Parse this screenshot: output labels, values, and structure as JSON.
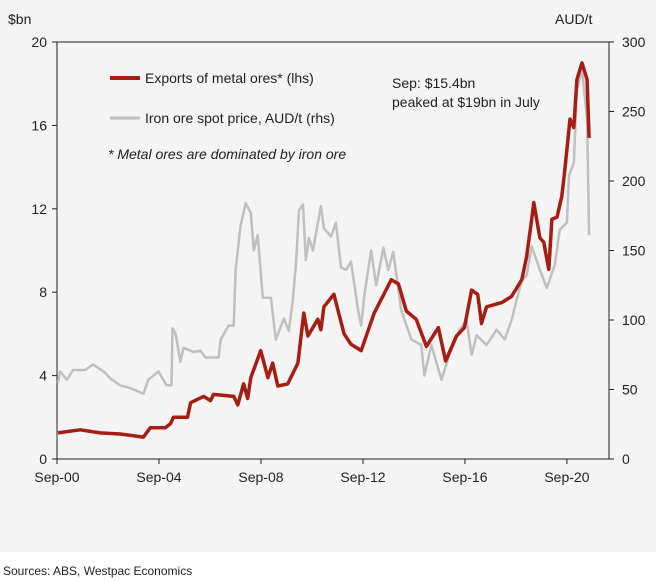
{
  "chart_data": {
    "type": "line",
    "left_axis": {
      "label": "$bn",
      "range": [
        0,
        20
      ],
      "ticks": [
        0,
        4,
        8,
        12,
        16,
        20
      ]
    },
    "right_axis": {
      "label": "AUD/t",
      "range": [
        0,
        300
      ],
      "ticks": [
        0,
        50,
        100,
        150,
        200,
        250,
        300
      ]
    },
    "x_axis": {
      "range": [
        2000.75,
        2022.4
      ],
      "ticks": [
        {
          "label": "Sep-00",
          "value": 2000.75
        },
        {
          "label": "Sep-04",
          "value": 2004.75
        },
        {
          "label": "Sep-08",
          "value": 2008.75
        },
        {
          "label": "Sep-12",
          "value": 2012.75
        },
        {
          "label": "Sep-16",
          "value": 2016.75
        },
        {
          "label": "Sep-20",
          "value": 2020.75
        }
      ]
    },
    "series": [
      {
        "name": "Exports of metal ores* (lhs)",
        "axis": "left",
        "color": "#a51e14",
        "points": [
          [
            2000.79,
            1.25
          ],
          [
            2001.66,
            1.4
          ],
          [
            2002.44,
            1.25
          ],
          [
            2003.23,
            1.2
          ],
          [
            2004.14,
            1.05
          ],
          [
            2004.41,
            1.5
          ],
          [
            2005.0,
            1.5
          ],
          [
            2005.2,
            1.7
          ],
          [
            2005.32,
            2.0
          ],
          [
            2005.87,
            2.0
          ],
          [
            2005.99,
            2.7
          ],
          [
            2006.5,
            3.0
          ],
          [
            2006.77,
            2.8
          ],
          [
            2006.89,
            3.1
          ],
          [
            2007.68,
            3.0
          ],
          [
            2007.84,
            2.6
          ],
          [
            2008.07,
            3.6
          ],
          [
            2008.23,
            2.9
          ],
          [
            2008.35,
            3.9
          ],
          [
            2008.74,
            5.2
          ],
          [
            2009.02,
            3.9
          ],
          [
            2009.21,
            4.6
          ],
          [
            2009.41,
            3.5
          ],
          [
            2009.8,
            3.6
          ],
          [
            2010.2,
            4.6
          ],
          [
            2010.43,
            7.0
          ],
          [
            2010.59,
            5.9
          ],
          [
            2010.98,
            6.7
          ],
          [
            2011.1,
            6.2
          ],
          [
            2011.22,
            7.3
          ],
          [
            2011.61,
            7.9
          ],
          [
            2012.01,
            6.0
          ],
          [
            2012.28,
            5.5
          ],
          [
            2012.68,
            5.2
          ],
          [
            2013.19,
            7.0
          ],
          [
            2013.86,
            8.6
          ],
          [
            2014.14,
            8.4
          ],
          [
            2014.45,
            7.1
          ],
          [
            2014.84,
            6.7
          ],
          [
            2015.24,
            5.4
          ],
          [
            2015.71,
            6.3
          ],
          [
            2015.99,
            4.7
          ],
          [
            2016.42,
            5.9
          ],
          [
            2016.73,
            6.3
          ],
          [
            2017.01,
            8.1
          ],
          [
            2017.25,
            7.9
          ],
          [
            2017.4,
            6.5
          ],
          [
            2017.6,
            7.3
          ],
          [
            2018.19,
            7.5
          ],
          [
            2018.58,
            7.8
          ],
          [
            2018.98,
            8.6
          ],
          [
            2019.17,
            9.7
          ],
          [
            2019.37,
            11.5
          ],
          [
            2019.45,
            12.3
          ],
          [
            2019.69,
            10.6
          ],
          [
            2019.84,
            10.4
          ],
          [
            2020.04,
            9.1
          ],
          [
            2020.16,
            11.5
          ],
          [
            2020.36,
            11.6
          ],
          [
            2020.55,
            12.6
          ],
          [
            2020.67,
            13.9
          ],
          [
            2020.87,
            16.3
          ],
          [
            2021.02,
            15.9
          ],
          [
            2021.14,
            18.2
          ],
          [
            2021.34,
            19.0
          ],
          [
            2021.54,
            18.2
          ],
          [
            2021.62,
            15.4
          ]
        ]
      },
      {
        "name": "Iron ore spot price, AUD/t (rhs)",
        "axis": "right",
        "color": "#c0c0c0",
        "points": [
          [
            2000.79,
            55
          ],
          [
            2000.87,
            63
          ],
          [
            2001.14,
            57
          ],
          [
            2001.38,
            64
          ],
          [
            2001.85,
            64
          ],
          [
            2002.17,
            68
          ],
          [
            2002.64,
            62
          ],
          [
            2002.84,
            58
          ],
          [
            2003.23,
            53
          ],
          [
            2003.62,
            51
          ],
          [
            2004.14,
            47
          ],
          [
            2004.33,
            57
          ],
          [
            2004.73,
            63
          ],
          [
            2005.04,
            53
          ],
          [
            2005.24,
            53
          ],
          [
            2005.28,
            94
          ],
          [
            2005.4,
            90
          ],
          [
            2005.59,
            70
          ],
          [
            2005.71,
            80
          ],
          [
            2006.1,
            77
          ],
          [
            2006.38,
            78
          ],
          [
            2006.58,
            73
          ],
          [
            2007.09,
            73
          ],
          [
            2007.17,
            86
          ],
          [
            2007.48,
            96
          ],
          [
            2007.68,
            96
          ],
          [
            2007.76,
            137
          ],
          [
            2007.95,
            168
          ],
          [
            2008.15,
            184
          ],
          [
            2008.35,
            177
          ],
          [
            2008.47,
            150
          ],
          [
            2008.62,
            161
          ],
          [
            2008.82,
            116
          ],
          [
            2009.14,
            116
          ],
          [
            2009.33,
            86
          ],
          [
            2009.65,
            101
          ],
          [
            2009.84,
            92
          ],
          [
            2010.0,
            114
          ],
          [
            2010.12,
            140
          ],
          [
            2010.24,
            179
          ],
          [
            2010.4,
            183
          ],
          [
            2010.51,
            143
          ],
          [
            2010.63,
            159
          ],
          [
            2010.79,
            150
          ],
          [
            2011.1,
            182
          ],
          [
            2011.22,
            166
          ],
          [
            2011.5,
            160
          ],
          [
            2011.69,
            170
          ],
          [
            2011.89,
            138
          ],
          [
            2012.09,
            136
          ],
          [
            2012.28,
            142
          ],
          [
            2012.56,
            107
          ],
          [
            2012.68,
            96
          ],
          [
            2012.8,
            117
          ],
          [
            2013.07,
            150
          ],
          [
            2013.27,
            125
          ],
          [
            2013.55,
            152
          ],
          [
            2013.74,
            136
          ],
          [
            2013.94,
            149
          ],
          [
            2014.25,
            107
          ],
          [
            2014.65,
            86
          ],
          [
            2015.04,
            82
          ],
          [
            2015.16,
            60
          ],
          [
            2015.43,
            82
          ],
          [
            2015.83,
            57
          ],
          [
            2016.14,
            75
          ],
          [
            2016.54,
            93
          ],
          [
            2016.81,
            100
          ],
          [
            2017.01,
            75
          ],
          [
            2017.21,
            89
          ],
          [
            2017.6,
            82
          ],
          [
            2017.99,
            93
          ],
          [
            2018.31,
            86
          ],
          [
            2018.58,
            100
          ],
          [
            2018.98,
            129
          ],
          [
            2019.17,
            132
          ],
          [
            2019.37,
            153
          ],
          [
            2019.69,
            136
          ],
          [
            2019.96,
            123
          ],
          [
            2020.28,
            140
          ],
          [
            2020.47,
            165
          ],
          [
            2020.75,
            170
          ],
          [
            2020.83,
            204
          ],
          [
            2021.02,
            213
          ],
          [
            2021.14,
            265
          ],
          [
            2021.34,
            281
          ],
          [
            2021.54,
            244
          ],
          [
            2021.62,
            161
          ]
        ]
      }
    ],
    "legend": {
      "placement": "top-left",
      "entries": [
        "Exports of metal ores* (lhs)",
        "Iron ore spot price, AUD/t (rhs)"
      ]
    },
    "annotations": {
      "footnote": "* Metal ores are dominated by iron ore",
      "callout_line1": "Sep: $15.4bn",
      "callout_line2": "peaked at $19bn in July"
    },
    "source": "Sources: ABS, Westpac Economics"
  }
}
